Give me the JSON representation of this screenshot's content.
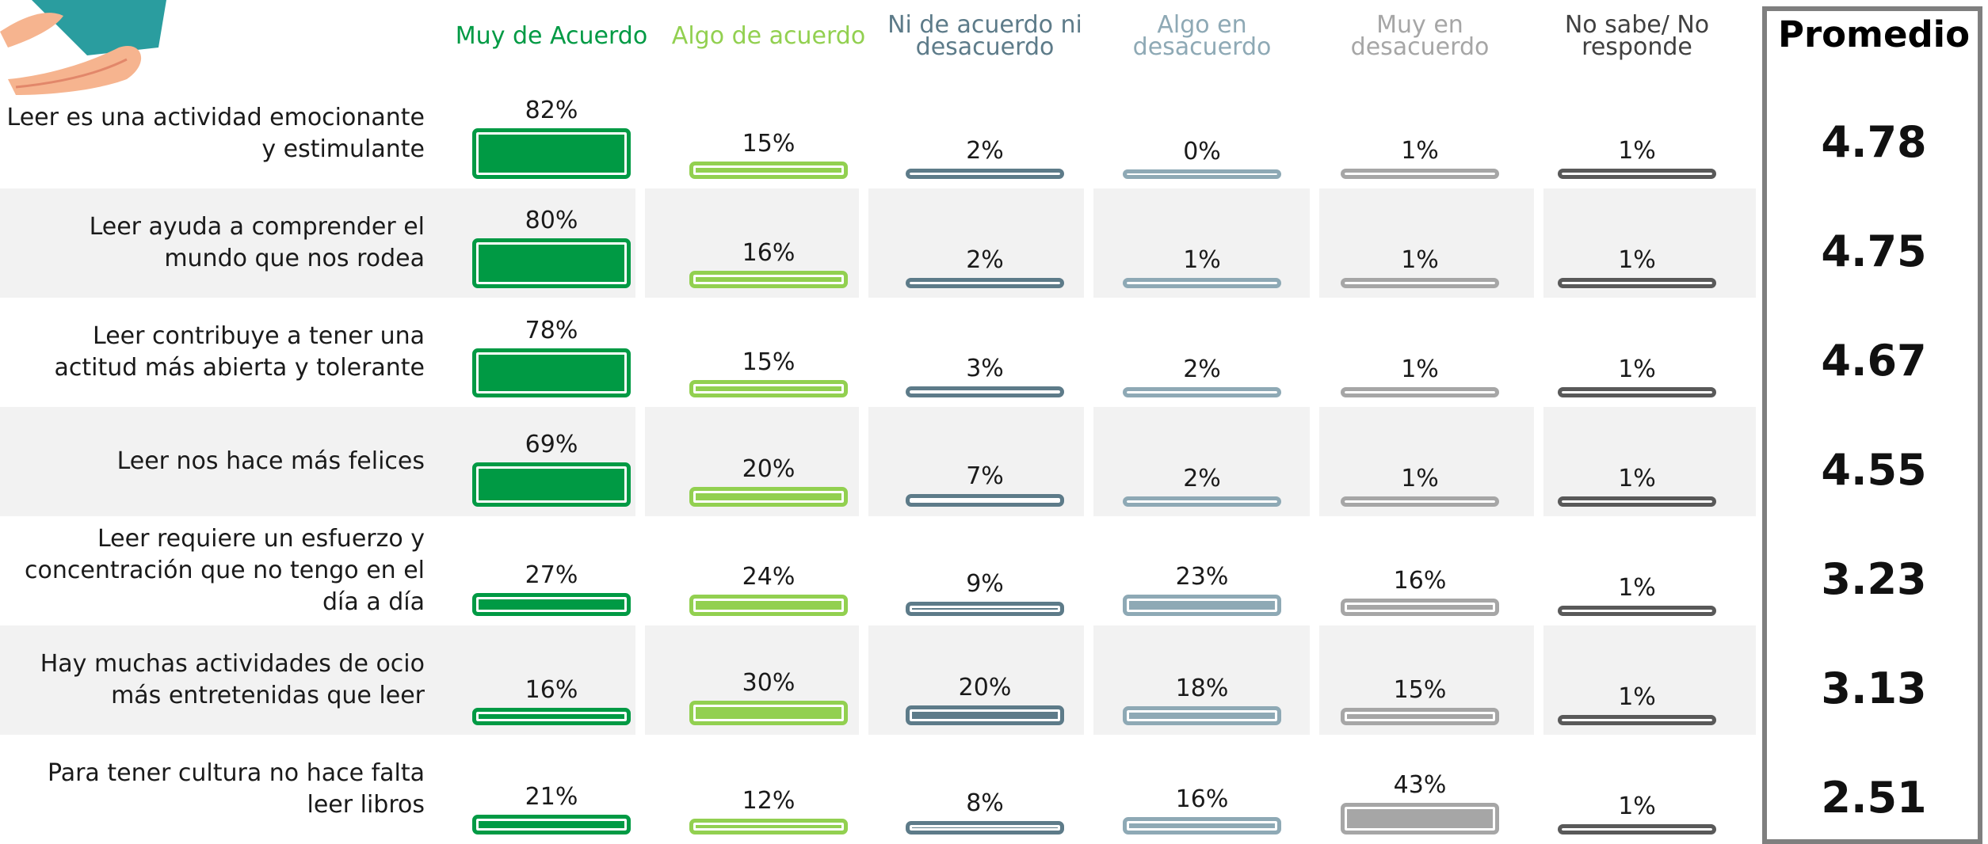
{
  "chart_data": {
    "type": "bar",
    "categories": [
      "Leer es una actividad emocionante y estimulante",
      "Leer ayuda a comprender el mundo que nos rodea",
      "Leer contribuye a tener una actitud más abierta y tolerante",
      "Leer nos hace más felices",
      "Leer requiere un esfuerzo y concentración que no tengo en el día a día",
      "Hay muchas actividades de ocio más entretenidas que leer",
      "Para tener cultura no hace falta leer libros"
    ],
    "series": [
      {
        "name": "Muy de Acuerdo",
        "color": "#009a44",
        "values": [
          82,
          80,
          78,
          69,
          27,
          16,
          21
        ],
        "value_labels": [
          "82%",
          "80%",
          "78%",
          "69%",
          "27%",
          "16%",
          "21%"
        ]
      },
      {
        "name": "Algo de acuerdo",
        "color": "#92d050",
        "values": [
          15,
          16,
          15,
          20,
          24,
          30,
          12
        ],
        "value_labels": [
          "15%",
          "16%",
          "15%",
          "20%",
          "24%",
          "30%",
          "12%"
        ]
      },
      {
        "name": "Ni de acuerdo ni desacuerdo",
        "color": "#5d7b89",
        "values": [
          2,
          2,
          3,
          7,
          9,
          20,
          8
        ],
        "value_labels": [
          "2%",
          "2%",
          "3%",
          "7%",
          "9%",
          "20%",
          "8%"
        ]
      },
      {
        "name": "Algo en desacuerdo",
        "color": "#8ea9b5",
        "values": [
          0,
          1,
          2,
          2,
          23,
          18,
          16
        ],
        "value_labels": [
          "0%",
          "1%",
          "2%",
          "2%",
          "23%",
          "18%",
          "16%"
        ]
      },
      {
        "name": "Muy en desacuerdo",
        "color": "#a6a6a6",
        "values": [
          1,
          1,
          1,
          1,
          16,
          15,
          43
        ],
        "value_labels": [
          "1%",
          "1%",
          "1%",
          "1%",
          "16%",
          "15%",
          "43%"
        ]
      },
      {
        "name": "No sabe/ No responde",
        "color": "#595959",
        "values": [
          1,
          1,
          1,
          1,
          1,
          1,
          1
        ],
        "value_labels": [
          "1%",
          "1%",
          "1%",
          "1%",
          "1%",
          "1%",
          "1%"
        ]
      }
    ],
    "average_title": "Promedio",
    "averages": [
      4.78,
      4.75,
      4.67,
      4.55,
      3.23,
      3.13,
      2.51
    ]
  }
}
